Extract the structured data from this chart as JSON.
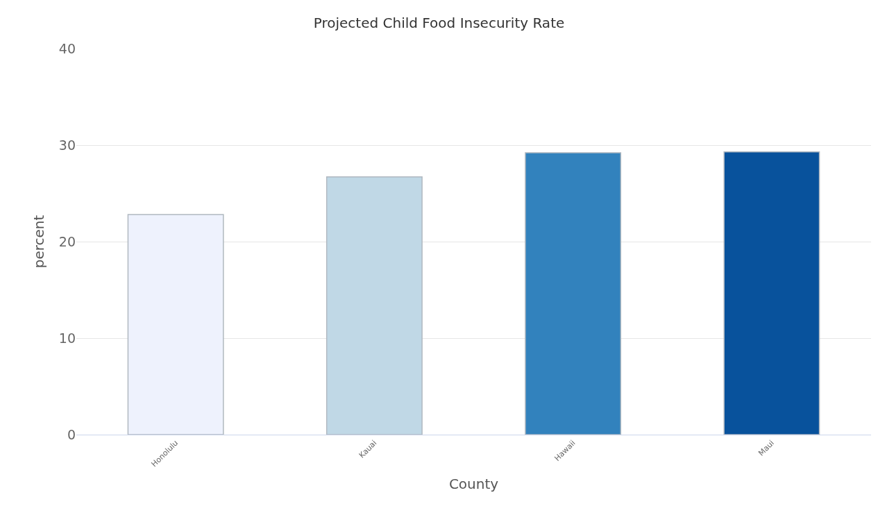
{
  "chart_data": {
    "type": "bar",
    "title": "Projected Child Food Insecurity Rate",
    "xlabel": "County",
    "ylabel": "percent",
    "categories": [
      "Honolulu",
      "Kauai",
      "Hawaii",
      "Maui"
    ],
    "values": [
      22.8,
      26.7,
      29.2,
      29.3
    ],
    "colors": [
      "#eef2fd",
      "#c0d8e6",
      "#3282bd",
      "#08529c"
    ],
    "ylim": [
      0,
      40
    ],
    "yticks": [
      0,
      10,
      20,
      30,
      40
    ],
    "grid": "y"
  }
}
